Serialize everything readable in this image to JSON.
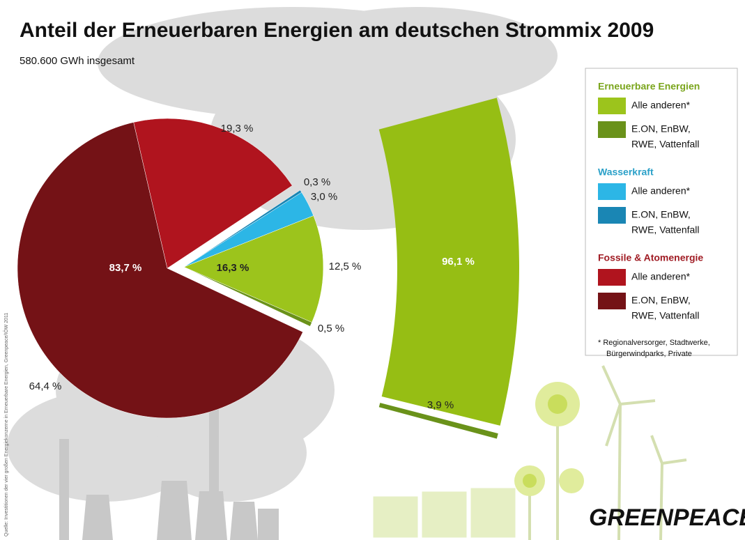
{
  "title": "Anteil der Erneuerbaren Energien am deutschen Strommix 2009",
  "subtitle": "580.600 GWh insgesamt",
  "source": "Quelle: Investitionen der vier großen Energiekonzerne in Erneuerbare Energien, Greenpeace/IÖW 2011",
  "logo": "GREENPEACE",
  "chart_data": [
    {
      "type": "pie",
      "groups": [
        {
          "label": "16,3 %",
          "value": 16.3,
          "values": [
            0.3,
            3.0,
            12.5,
            0.5
          ],
          "value_labels": [
            "0,3 %",
            "3,0 %",
            "12,5 %",
            "0,5 %"
          ],
          "colors": [
            "#1a86b4",
            "#2cb6e6",
            "#9cc41c",
            "#6a921a"
          ]
        },
        {
          "label": "83,7 %",
          "value": 83.7,
          "values": [
            64.4,
            19.3
          ],
          "value_labels": [
            "64,4 %",
            "19,3 %"
          ],
          "colors": [
            "#741216",
            "#b0141e"
          ]
        }
      ]
    },
    {
      "type": "arc-bar",
      "values": [
        96.1,
        3.9
      ],
      "value_labels": [
        "96,1 %",
        "3,9 %"
      ],
      "colors": [
        "#96be14",
        "#6a921a"
      ]
    }
  ],
  "legend": {
    "groups": [
      {
        "title": "Erneuerbare Energien",
        "color": "#7aa51c",
        "items": [
          {
            "label": [
              "Alle anderen*"
            ],
            "color": "#9cc41c"
          },
          {
            "label": [
              "E.ON, EnBW,",
              "RWE, Vattenfall"
            ],
            "color": "#6a921a"
          }
        ]
      },
      {
        "title": "Wasserkraft",
        "color": "#2aa0c8",
        "items": [
          {
            "label": [
              "Alle anderen*"
            ],
            "color": "#2cb6e6"
          },
          {
            "label": [
              "E.ON, EnBW,",
              "RWE, Vattenfall"
            ],
            "color": "#1a86b4"
          }
        ]
      },
      {
        "title": "Fossile & Atomenergie",
        "color": "#a01c24",
        "items": [
          {
            "label": [
              "Alle anderen*"
            ],
            "color": "#b0141e"
          },
          {
            "label": [
              "E.ON, EnBW,",
              "RWE, Vattenfall"
            ],
            "color": "#741216"
          }
        ]
      }
    ],
    "footnote": [
      "* Regionalversorger, Stadtwerke,",
      "Bürgerwindparks, Private"
    ]
  }
}
